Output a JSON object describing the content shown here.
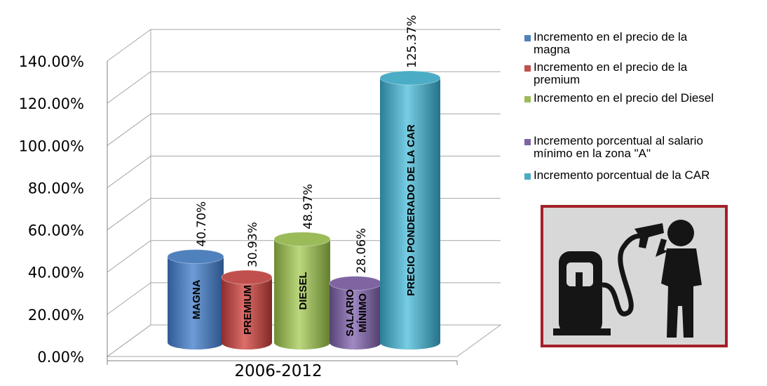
{
  "chart_data": {
    "type": "bar",
    "style": "3d-cylinder",
    "title": "",
    "xlabel": "",
    "ylabel": "",
    "category": "2006-2012",
    "ylim": [
      0,
      140
    ],
    "yticks": [
      "0.00%",
      "20.00%",
      "40.00%",
      "60.00%",
      "80.00%",
      "100.00%",
      "120.00%",
      "140.00%"
    ],
    "grid": true,
    "legend_position": "right",
    "series": [
      {
        "name": "Incremento en el precio de la magna",
        "bar_label": "MAGNA",
        "value": 40.7,
        "value_label": "40.70%",
        "color": "#4f81bd"
      },
      {
        "name": "Incremento en el precio de la premium",
        "bar_label": "PREMIUM",
        "value": 30.93,
        "value_label": "30.93%",
        "color": "#c0504d"
      },
      {
        "name": "Incremento en el precio del Diesel",
        "bar_label": "DIESEL",
        "value": 48.97,
        "value_label": "48.97%",
        "color": "#9bbb59"
      },
      {
        "name": "Incremento porcentual al salario mínimo en la zona \"A\"",
        "bar_label": "SALARIO MÍNIMO",
        "value": 28.06,
        "value_label": "28.06%",
        "color": "#8064a2"
      },
      {
        "name": "Incremento porcentual de la CAR",
        "bar_label": "PRECIO PONDERADO DE LA CAR",
        "value": 125.37,
        "value_label": "125.37%",
        "color": "#4bacc6"
      }
    ]
  },
  "legend": {
    "items": [
      {
        "lines": [
          "Incremento en el precio de la",
          "magna"
        ],
        "color": "#4f81bd",
        "icon": "square-swatch"
      },
      {
        "lines": [
          "Incremento en el precio de la",
          "premium"
        ],
        "color": "#c0504d",
        "icon": "square-swatch"
      },
      {
        "lines": [
          "Incremento en el precio del Diesel"
        ],
        "color": "#9bbb59",
        "icon": "square-swatch"
      },
      {
        "lines": [
          "Incremento porcentual al salario",
          "mínimo en la zona \"A\""
        ],
        "color": "#8064a2",
        "icon": "square-swatch"
      },
      {
        "lines": [
          "Incremento porcentual de la CAR"
        ],
        "color": "#4bacc6",
        "icon": "square-swatch"
      }
    ]
  },
  "image": {
    "icon": "fuel-pump-gun-to-head-icon",
    "border_color": "#a3202a"
  }
}
